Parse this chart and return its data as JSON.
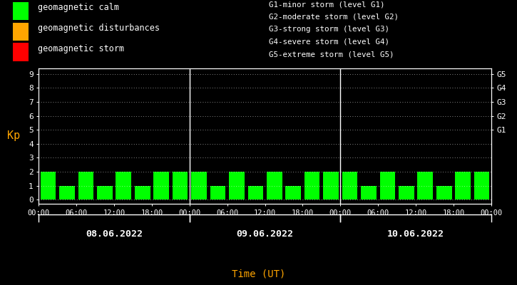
{
  "background_color": "#000000",
  "plot_bg_color": "#000000",
  "bar_color": "#00ff00",
  "text_color": "#ffffff",
  "orange_color": "#ffa500",
  "kp_values": [
    2,
    1,
    2,
    1,
    2,
    1,
    2,
    2,
    2,
    1,
    2,
    1,
    2,
    1,
    2,
    2,
    2,
    1,
    2,
    1,
    2,
    1,
    2,
    2
  ],
  "days": [
    "08.06.2022",
    "09.06.2022",
    "10.06.2022"
  ],
  "tick_labels": [
    "00:00",
    "06:00",
    "12:00",
    "18:00",
    "00:00",
    "06:00",
    "12:00",
    "18:00",
    "00:00",
    "06:00",
    "12:00",
    "18:00",
    "00:00"
  ],
  "ylabel": "Kp",
  "xlabel": "Time (UT)",
  "ylim_min": -0.3,
  "ylim_max": 9.4,
  "yticks": [
    0,
    1,
    2,
    3,
    4,
    5,
    6,
    7,
    8,
    9
  ],
  "legend_items": [
    {
      "label": "geomagnetic calm",
      "color": "#00ff00"
    },
    {
      "label": "geomagnetic disturbances",
      "color": "#ffa500"
    },
    {
      "label": "geomagnetic storm",
      "color": "#ff0000"
    }
  ],
  "right_labels": [
    {
      "y": 5,
      "text": "G1"
    },
    {
      "y": 6,
      "text": "G2"
    },
    {
      "y": 7,
      "text": "G3"
    },
    {
      "y": 8,
      "text": "G4"
    },
    {
      "y": 9,
      "text": "G5"
    }
  ],
  "storm_legend": [
    "G1-minor storm (level G1)",
    "G2-moderate storm (level G2)",
    "G3-strong storm (level G3)",
    "G4-severe storm (level G4)",
    "G5-extreme storm (level G5)"
  ],
  "bar_width": 0.82,
  "intervals_per_day": 8
}
